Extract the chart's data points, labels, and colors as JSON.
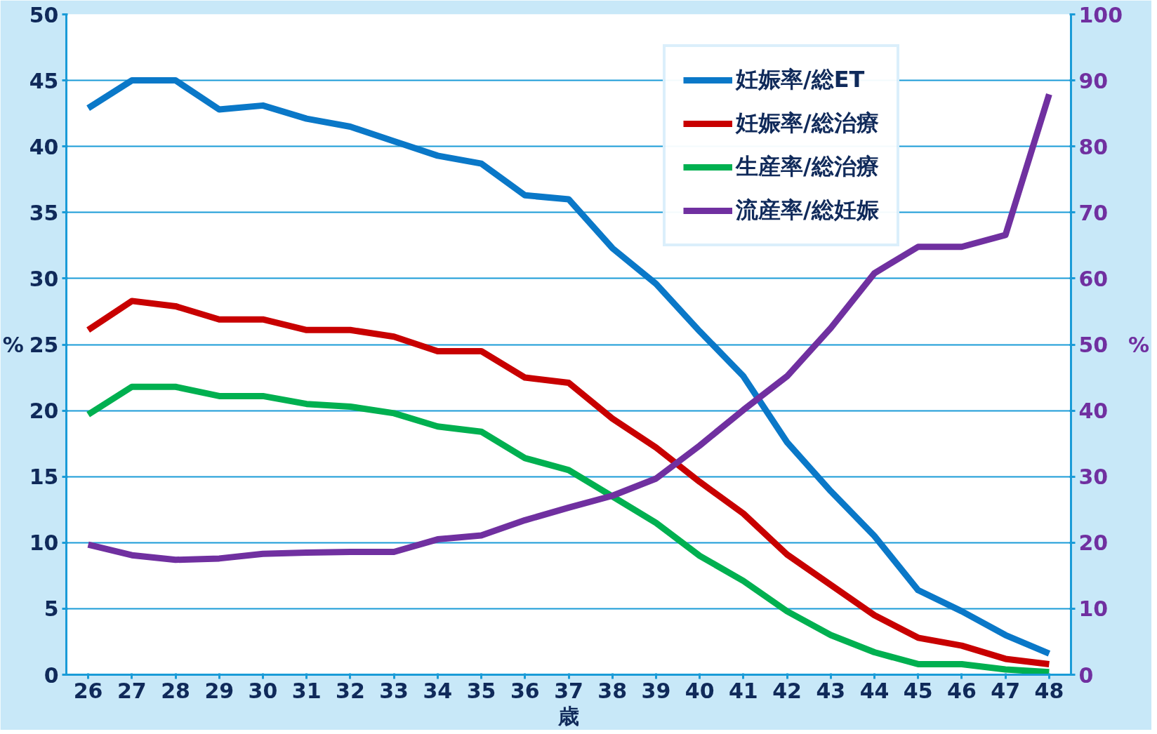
{
  "chart_data": {
    "type": "line",
    "xlabel": "歳",
    "ylabel": "%",
    "y2label": "%",
    "x": [
      26,
      27,
      28,
      29,
      30,
      31,
      32,
      33,
      34,
      35,
      36,
      37,
      38,
      39,
      40,
      41,
      42,
      43,
      44,
      45,
      46,
      47,
      48
    ],
    "xlim": [
      25.5,
      48.5
    ],
    "xticks": [
      26,
      27,
      28,
      29,
      30,
      31,
      32,
      33,
      34,
      35,
      36,
      37,
      38,
      39,
      40,
      41,
      42,
      43,
      44,
      45,
      46,
      47,
      48
    ],
    "ylim": [
      0,
      50
    ],
    "yticks": [
      0,
      5,
      10,
      15,
      20,
      25,
      30,
      35,
      40,
      45,
      50
    ],
    "y2lim": [
      0,
      100
    ],
    "y2ticks": [
      0,
      10,
      20,
      30,
      40,
      50,
      60,
      70,
      80,
      90,
      100
    ],
    "grid": "y",
    "legend": "top right",
    "marker": "none",
    "line_style": "solid",
    "series": [
      {
        "name": "妊娠率/総ET",
        "color": "#0a78c8",
        "values": [
          42.9,
          45,
          45,
          42.8,
          43.1,
          42.1,
          41.5,
          40.4,
          39.3,
          38.7,
          36.3,
          36.0,
          32.3,
          29.6,
          26.0,
          22.6,
          17.6,
          13.9,
          10.5,
          6.4,
          4.8,
          3.0,
          1.6
        ]
      },
      {
        "name": "妊娠率/総治療",
        "color": "#c80000",
        "values": [
          26.1,
          28.3,
          27.9,
          26.9,
          26.9,
          26.1,
          26.1,
          25.6,
          24.5,
          24.5,
          22.5,
          22.1,
          19.4,
          17.2,
          14.6,
          12.2,
          9.1,
          6.8,
          4.5,
          2.8,
          2.2,
          1.2,
          0.8
        ]
      },
      {
        "name": "生産率/総治療",
        "color": "#00b050",
        "values": [
          19.7,
          21.8,
          21.8,
          21.1,
          21.1,
          20.5,
          20.3,
          19.8,
          18.8,
          18.4,
          16.4,
          15.5,
          13.5,
          11.5,
          9.0,
          7.1,
          4.8,
          3.0,
          1.7,
          0.8,
          0.8,
          0.4,
          0.2
        ]
      },
      {
        "name": "流産率/総妊娠",
        "color": "#7030a0",
        "axis": "y2",
        "values": [
          19.7,
          18.1,
          17.4,
          17.6,
          18.3,
          18.5,
          18.6,
          18.6,
          20.5,
          21.1,
          23.4,
          25.3,
          27.1,
          29.7,
          34.7,
          40.1,
          45.2,
          52.5,
          60.8,
          64.8,
          64.8,
          66.6,
          87.9
        ]
      }
    ]
  }
}
